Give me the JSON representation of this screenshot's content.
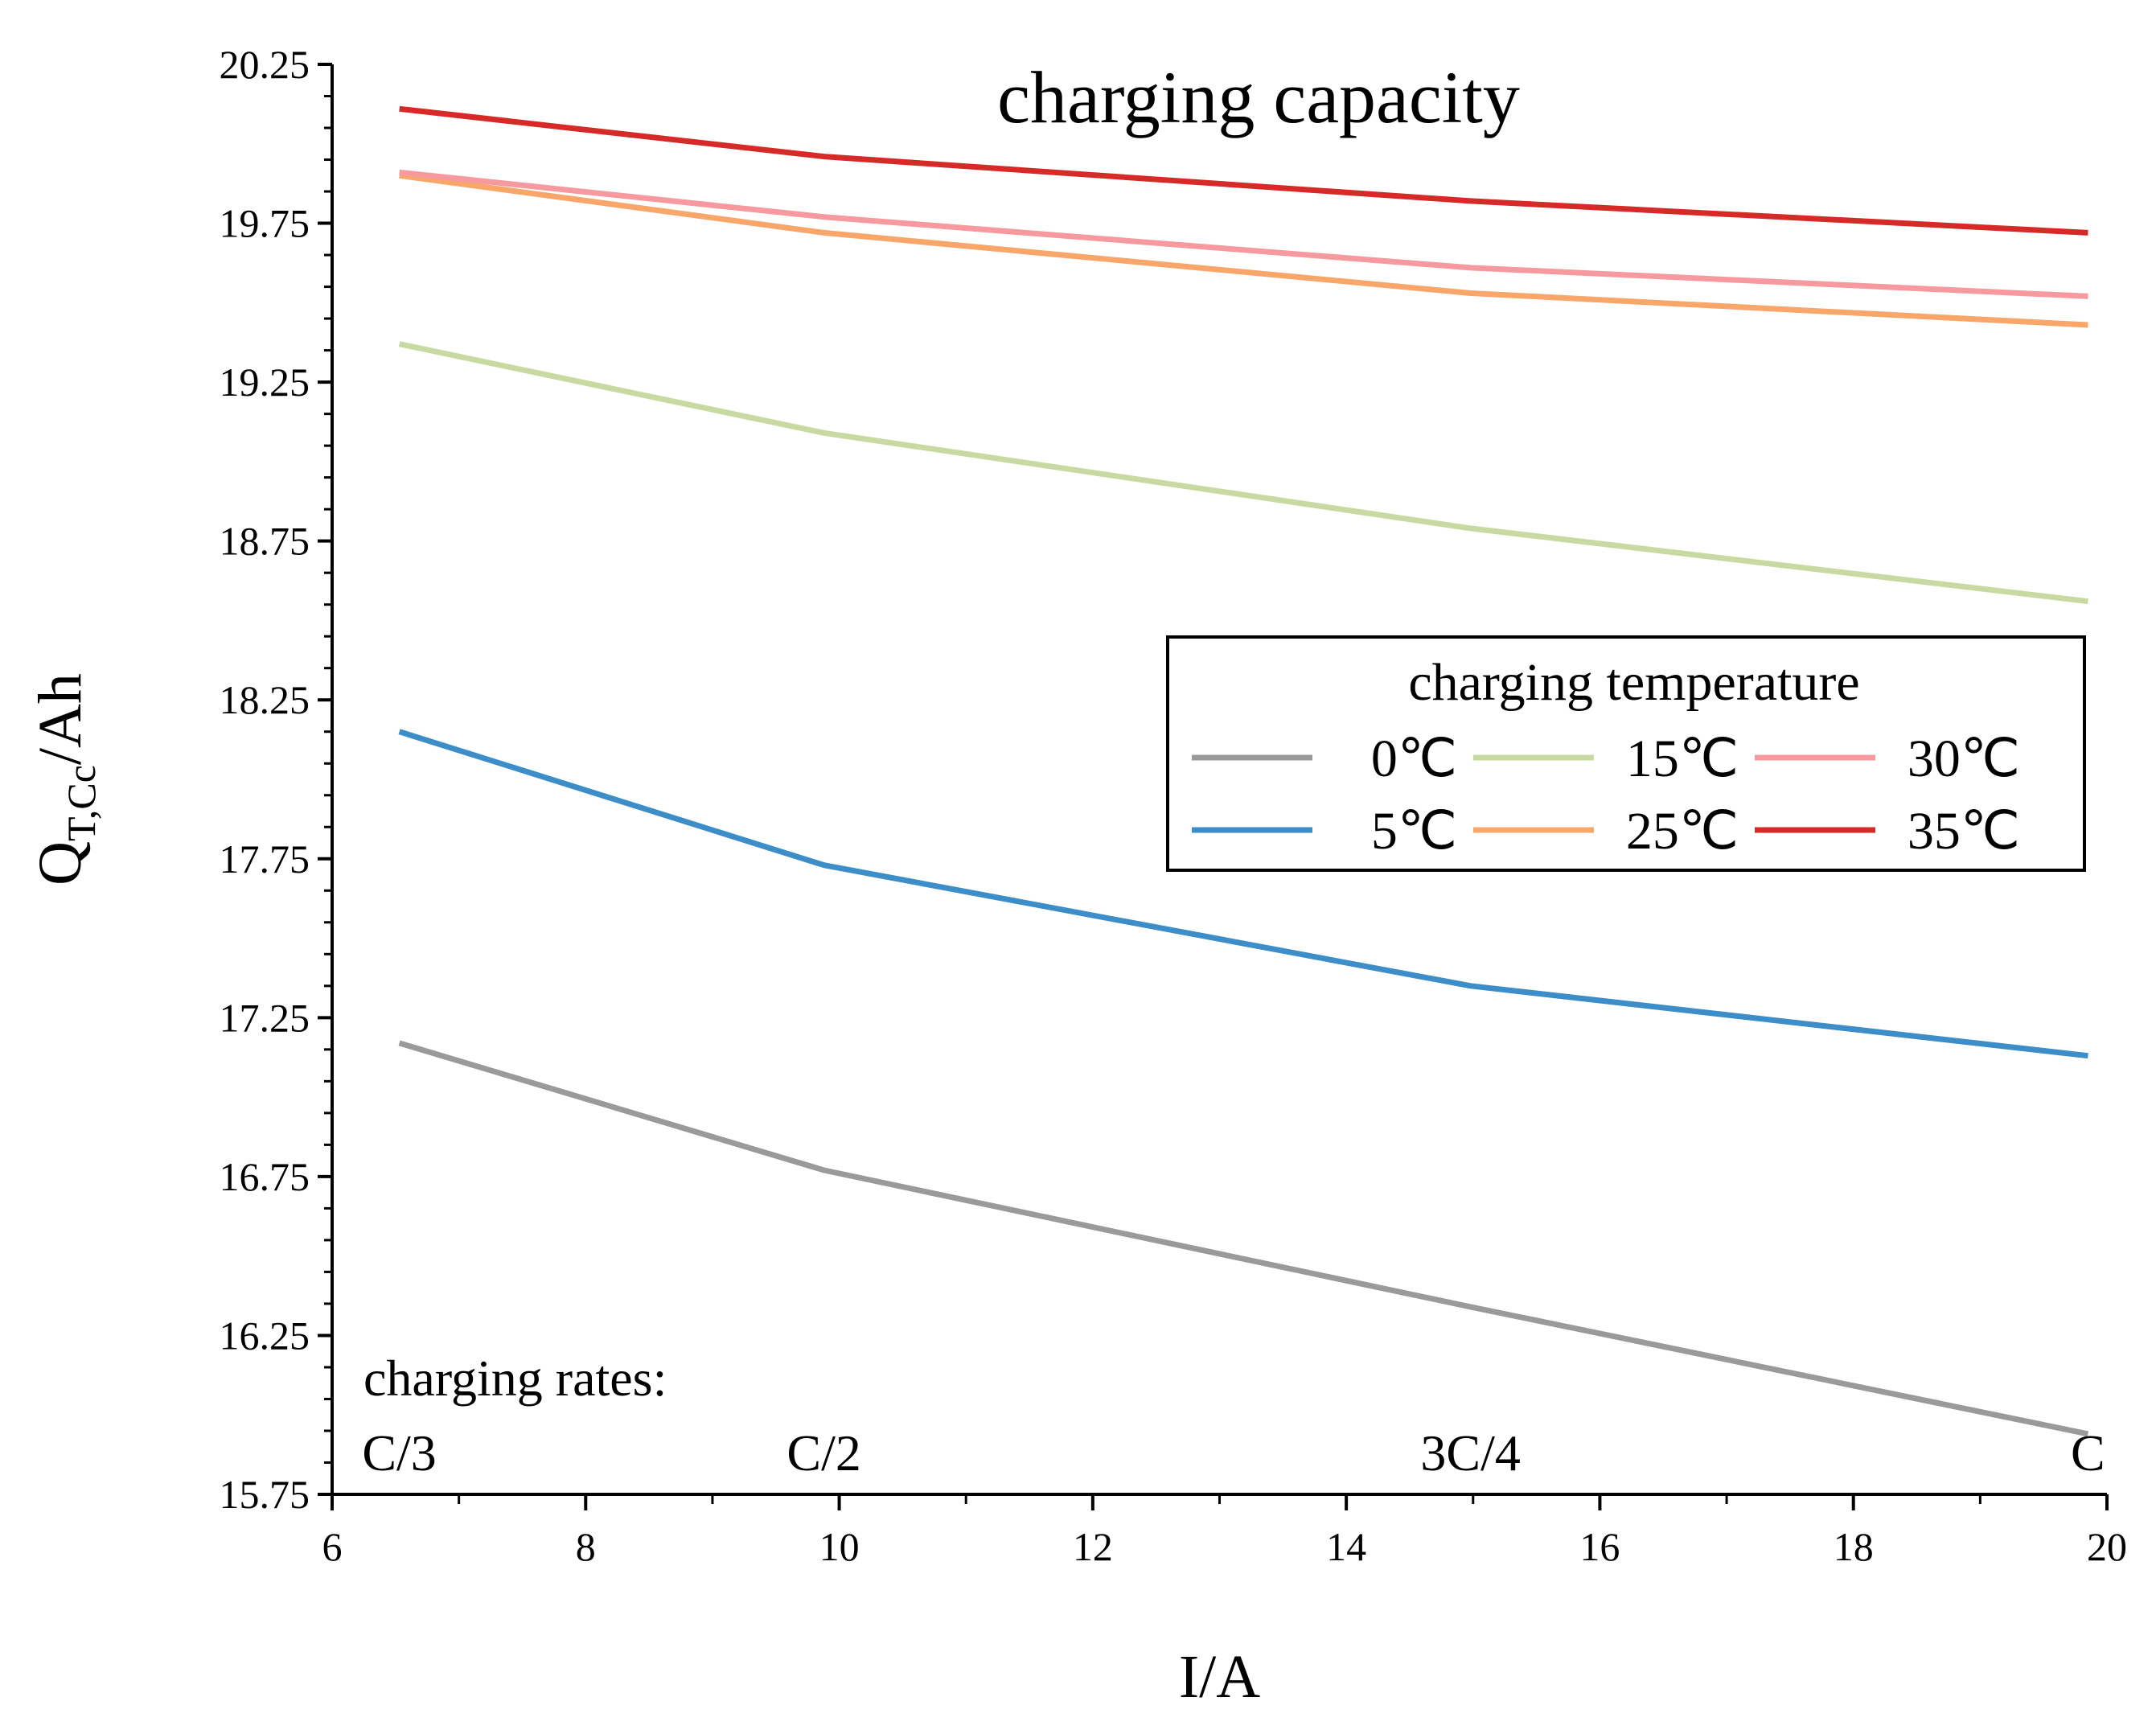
{
  "chart_data": {
    "type": "line",
    "title": "charging capacity",
    "xlabel": "I/A",
    "ylabel_main": "Q",
    "ylabel_sub": "T,Cc",
    "ylabel_unit": "/Ah",
    "xlim": [
      6,
      20
    ],
    "ylim": [
      15.75,
      20.25
    ],
    "x_ticks": [
      6,
      8,
      10,
      12,
      14,
      16,
      18,
      20
    ],
    "y_ticks": [
      15.75,
      16.25,
      16.75,
      17.25,
      17.75,
      18.25,
      18.75,
      19.25,
      19.75,
      20.25
    ],
    "y_tick_labels": [
      "15.75",
      "16.25",
      "16.75",
      "17.25",
      "17.75",
      "18.25",
      "18.75",
      "19.25",
      "19.75",
      "20.25"
    ],
    "x": [
      6.53,
      9.88,
      14.98,
      19.85
    ],
    "series": [
      {
        "name": "0℃",
        "color": "#9a9a9a",
        "values": [
          17.17,
          16.77,
          16.34,
          15.94
        ]
      },
      {
        "name": "5℃",
        "color": "#3c8dc8",
        "values": [
          18.15,
          17.73,
          17.35,
          17.13
        ]
      },
      {
        "name": "15℃",
        "color": "#c9d9a2",
        "values": [
          19.37,
          19.09,
          18.79,
          18.56
        ]
      },
      {
        "name": "25℃",
        "color": "#f9a66b",
        "values": [
          19.9,
          19.72,
          19.53,
          19.43
        ]
      },
      {
        "name": "30℃",
        "color": "#f79aa0",
        "values": [
          19.91,
          19.77,
          19.61,
          19.52
        ]
      },
      {
        "name": "35℃",
        "color": "#d52a28",
        "values": [
          20.11,
          19.96,
          19.82,
          19.72
        ]
      }
    ],
    "legend": {
      "title": "charging temperature",
      "placement": "center-right",
      "columns": 3
    },
    "annotations": {
      "rates_title": "charging rates:",
      "rates": [
        {
          "label": "C/3",
          "x": 6.53
        },
        {
          "label": "C/2",
          "x": 9.88
        },
        {
          "label": "3C/4",
          "x": 14.98
        },
        {
          "label": "C",
          "x": 19.85
        }
      ]
    },
    "grid": false
  }
}
